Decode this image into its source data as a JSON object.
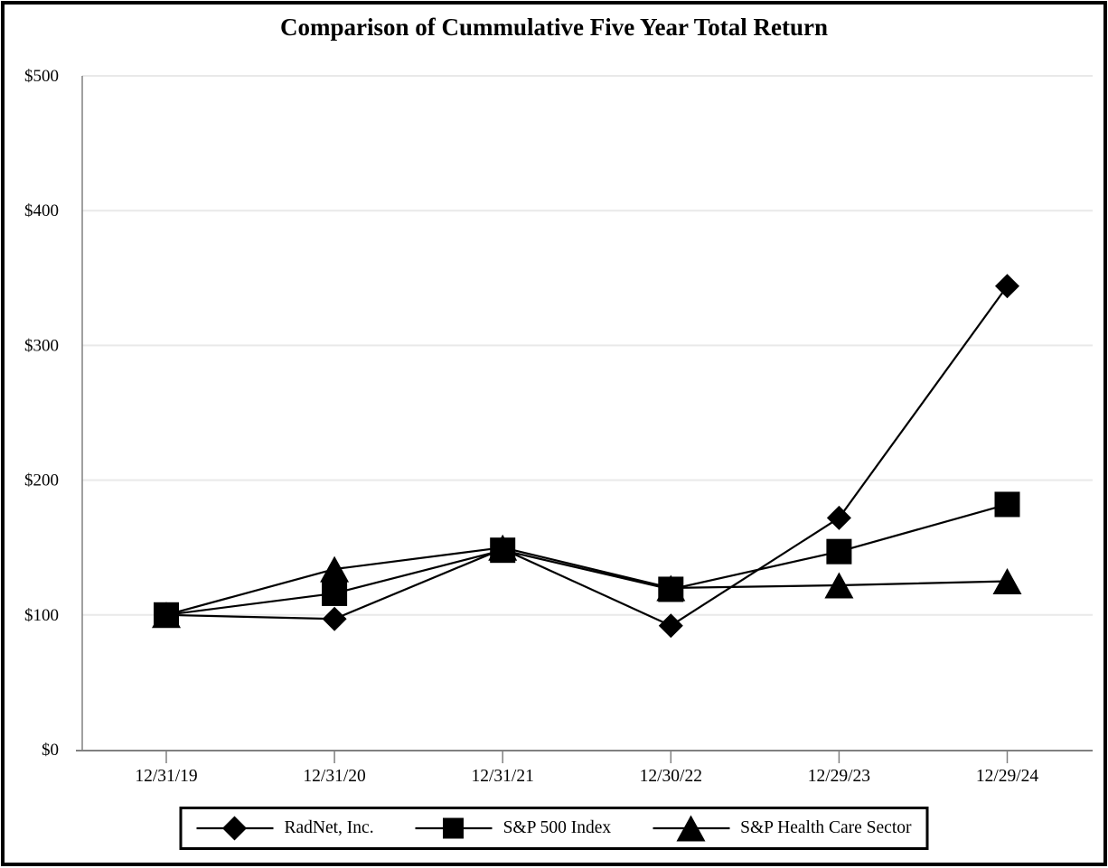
{
  "chart_data": {
    "type": "line",
    "title": "Comparison of Cummulative Five Year Total Return",
    "categories": [
      "12/31/19",
      "12/31/20",
      "12/31/21",
      "12/30/22",
      "12/29/23",
      "12/29/24"
    ],
    "series": [
      {
        "name": "RadNet, Inc.",
        "marker": "diamond",
        "values": [
          100,
          97,
          149,
          92,
          172,
          344
        ]
      },
      {
        "name": "S&P 500 Index",
        "marker": "square",
        "values": [
          100,
          116,
          148,
          119,
          147,
          182
        ]
      },
      {
        "name": "S&P Health Care Sector",
        "marker": "triangle",
        "values": [
          100,
          134,
          150,
          120,
          122,
          125
        ]
      }
    ],
    "y_ticks": [
      "$0",
      "$100",
      "$200",
      "$300",
      "$400",
      "$500"
    ],
    "y_tick_values": [
      0,
      100,
      200,
      300,
      400,
      500
    ],
    "ylim": [
      0,
      500
    ],
    "grid": "horizontal",
    "legend_position": "bottom",
    "colors": {
      "series": "#000000",
      "axis": "#808080",
      "gridline": "#e9e9e9",
      "background": "#ffffff",
      "border": "#000000"
    }
  }
}
